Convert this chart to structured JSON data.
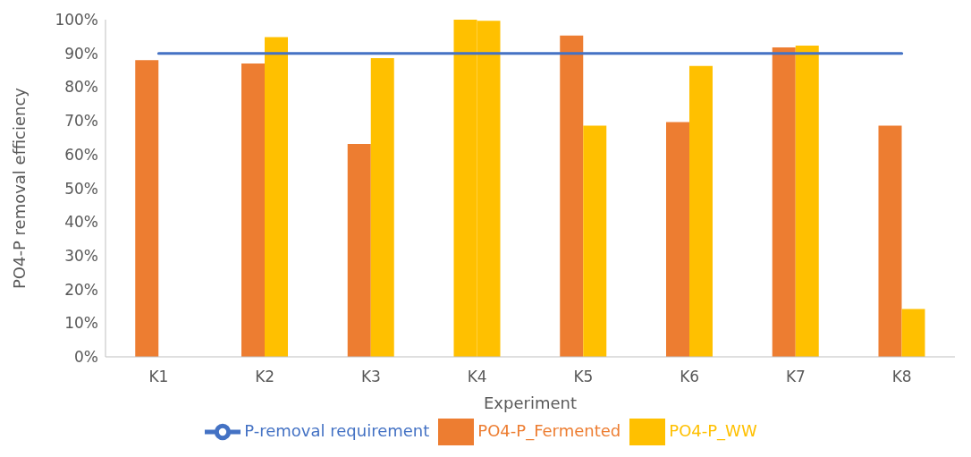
{
  "chart_data": {
    "type": "bar",
    "xlabel": "Experiment",
    "ylabel": "PO4-P removal efficiency",
    "categories": [
      "K1",
      "K2",
      "K3",
      "K4",
      "K5",
      "K6",
      "K7",
      "K8"
    ],
    "series": [
      {
        "name": "PO4-P_Fermented",
        "color": "#ed7d31",
        "colors": [
          "#ed7d31",
          "#ed7d31",
          "#ed7d31",
          "#ffc000",
          "#ed7d31",
          "#ed7d31",
          "#ed7d31",
          "#ed7d31"
        ],
        "values": [
          88,
          87,
          63.1,
          100,
          95.3,
          69.6,
          91.8,
          68.6
        ]
      },
      {
        "name": "PO4-P_WW",
        "color": "#ffc000",
        "values": [
          null,
          94.8,
          88.6,
          99.7,
          68.6,
          86.3,
          92.3,
          14.2
        ]
      },
      {
        "name": "P-removal requirement",
        "type": "line",
        "color": "#4472c4",
        "values": [
          90,
          90,
          90,
          90,
          90,
          90,
          90,
          90
        ]
      }
    ],
    "ylim": [
      0,
      100
    ],
    "yticks": [
      {
        "value": 0,
        "label": "0%"
      },
      {
        "value": 10,
        "label": "10%"
      },
      {
        "value": 20,
        "label": "20%"
      },
      {
        "value": 30,
        "label": "30%"
      },
      {
        "value": 40,
        "label": "40%"
      },
      {
        "value": 50,
        "label": "50%"
      },
      {
        "value": 60,
        "label": "60%"
      },
      {
        "value": 70,
        "label": "70%"
      },
      {
        "value": 80,
        "label": "80%"
      },
      {
        "value": 90,
        "label": "90%"
      },
      {
        "value": 100,
        "label": "100%"
      }
    ],
    "grid": false,
    "legend": "bottom",
    "marker": "none"
  }
}
